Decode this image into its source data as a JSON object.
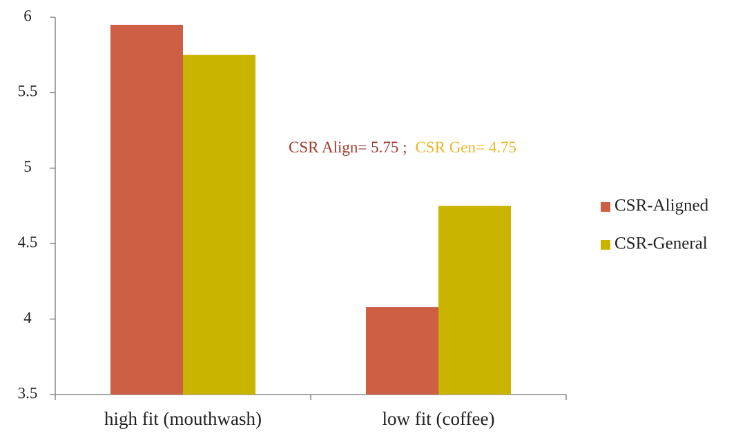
{
  "chart_data": {
    "type": "bar",
    "categories": [
      "high fit (mouthwash)",
      "low fit (coffee)"
    ],
    "series": [
      {
        "name": "CSR-Aligned",
        "color": "#cd5f45",
        "values": [
          5.95,
          4.08
        ]
      },
      {
        "name": "CSR-General",
        "color": "#c9b400",
        "values": [
          5.75,
          4.75
        ]
      }
    ],
    "ylim": [
      3.5,
      6
    ],
    "yticks": [
      3.5,
      4,
      4.5,
      5,
      5.5,
      6
    ],
    "legend": "right",
    "annotations": [
      {
        "text": "CSR Align= 5.75 ;",
        "color": "#9e3a2e"
      },
      {
        "text": "CSR Gen= 4.75",
        "color": "#e8b828"
      }
    ]
  }
}
